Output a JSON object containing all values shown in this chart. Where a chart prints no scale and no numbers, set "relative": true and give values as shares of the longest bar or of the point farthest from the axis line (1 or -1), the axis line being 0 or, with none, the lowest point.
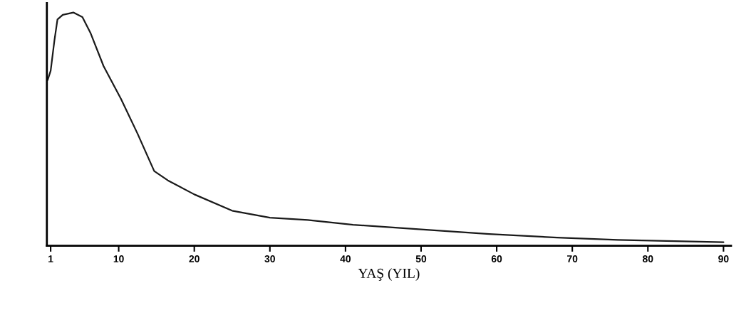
{
  "chart_data": {
    "type": "line",
    "relative": true,
    "xlabel": "YAŞ (YIL)",
    "x": [
      0.6,
      1,
      1.5,
      1.9,
      2.6,
      4,
      5.2,
      6.3,
      8,
      10.3,
      12.5,
      14.7,
      16.5,
      20,
      25,
      30,
      35,
      41,
      50,
      59,
      68,
      76,
      90
    ],
    "series": [
      {
        "color": "#1a1a1a",
        "values": [
          0.71,
          0.75,
          0.88,
          0.97,
          0.99,
          1.0,
          0.98,
          0.91,
          0.77,
          0.63,
          0.48,
          0.32,
          0.28,
          0.22,
          0.15,
          0.12,
          0.11,
          0.09,
          0.07,
          0.05,
          0.035,
          0.025,
          0.015
        ]
      }
    ],
    "xlim": [
      0.5,
      91
    ],
    "xticks": [
      1,
      10,
      20,
      30,
      40,
      50,
      60,
      70,
      80,
      90
    ],
    "tick_labels": "x",
    "grid": false,
    "line_style": "solid",
    "marker": "none"
  }
}
